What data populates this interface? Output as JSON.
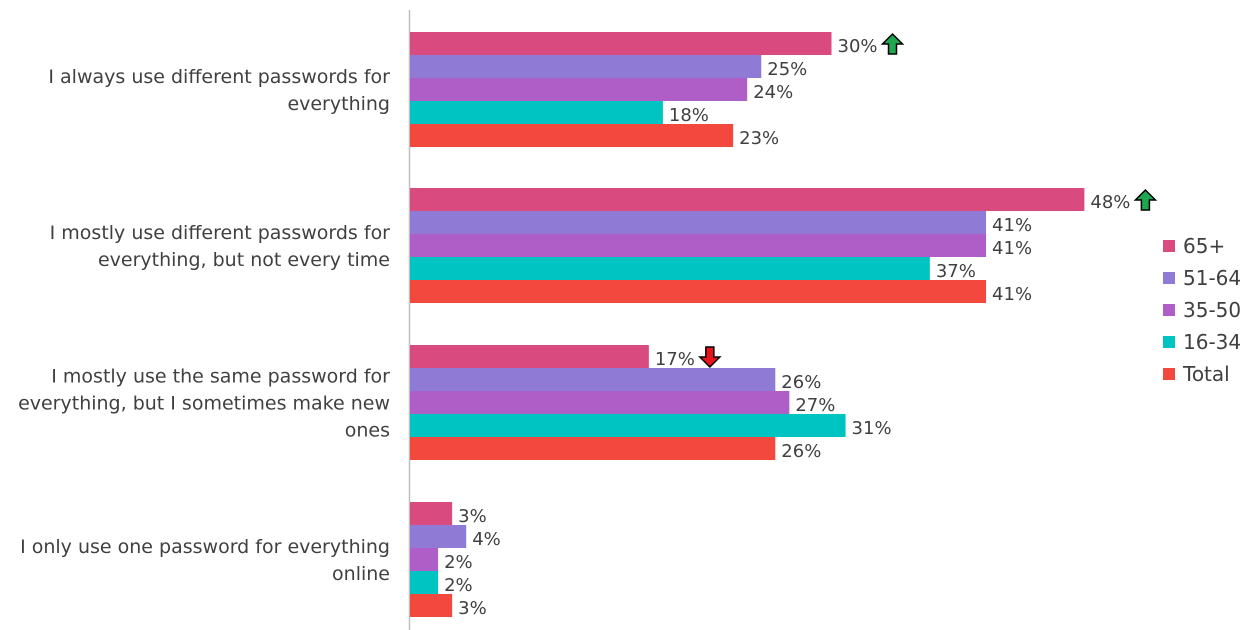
{
  "chart_data": {
    "type": "bar",
    "orientation": "horizontal",
    "categories": [
      [
        "I always use different passwords for",
        "everything"
      ],
      [
        "I mostly use different passwords for",
        "everything, but not every time"
      ],
      [
        "I mostly use the same password for",
        "everything, but I sometimes make new",
        "ones"
      ],
      [
        "I only use one password for everything",
        "online"
      ]
    ],
    "value_suffix": "%",
    "xlim": [
      0,
      50
    ],
    "grid": false,
    "legend_position": "right",
    "series": [
      {
        "name": "65+",
        "color": "#D94A7E",
        "values": [
          30,
          48,
          17,
          3
        ],
        "markers": [
          "up",
          "up",
          "down",
          null
        ]
      },
      {
        "name": "51-64",
        "color": "#8F7AD6",
        "values": [
          25,
          41,
          26,
          4
        ]
      },
      {
        "name": "35-50",
        "color": "#AE5EC6",
        "values": [
          24,
          41,
          27,
          2
        ]
      },
      {
        "name": "16-34",
        "color": "#00C4C1",
        "values": [
          18,
          37,
          31,
          2
        ]
      },
      {
        "name": "Total",
        "color": "#F2483E",
        "values": [
          23,
          41,
          26,
          3
        ]
      }
    ],
    "marker_colors": {
      "up": "#1FA84F",
      "down": "#E8141C"
    },
    "axis_color": "#BFBFBF"
  }
}
